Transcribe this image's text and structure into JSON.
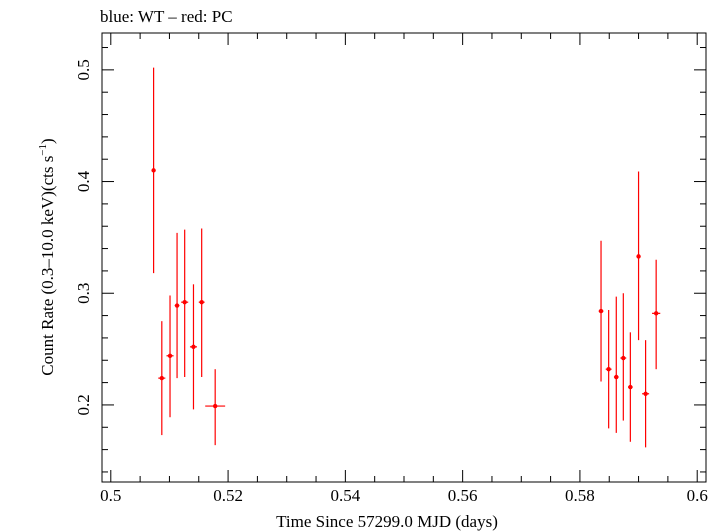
{
  "chart_data": {
    "type": "scatter",
    "title": "blue: WT – red: PC",
    "xlabel": "Time Since 57299.0 MJD (days)",
    "ylabel_main": "Count Rate (0.3–10.0 keV)(cts s",
    "ylabel_sup": "−1",
    "ylabel_close": ")",
    "xlim": [
      0.4985,
      0.6015
    ],
    "ylim": [
      0.131,
      0.533
    ],
    "x_ticks": [
      {
        "value": 0.5,
        "label": "0.5"
      },
      {
        "value": 0.52,
        "label": "0.52"
      },
      {
        "value": 0.54,
        "label": "0.54"
      },
      {
        "value": 0.56,
        "label": "0.56"
      },
      {
        "value": 0.58,
        "label": "0.58"
      },
      {
        "value": 0.6,
        "label": "0.6"
      }
    ],
    "y_ticks": [
      {
        "value": 0.2,
        "label": "0.2"
      },
      {
        "value": 0.3,
        "label": "0.3"
      },
      {
        "value": 0.4,
        "label": "0.4"
      },
      {
        "value": 0.5,
        "label": "0.5"
      }
    ],
    "grid": false,
    "series": [
      {
        "color": "#ff0000",
        "points": [
          {
            "x": 0.5073,
            "xerr": 0.0003,
            "y": 0.41,
            "ylo": 0.318,
            "yhi": 0.502
          },
          {
            "x": 0.5087,
            "xerr": 0.0006,
            "y": 0.224,
            "ylo": 0.173,
            "yhi": 0.275
          },
          {
            "x": 0.5101,
            "xerr": 0.0006,
            "y": 0.244,
            "ylo": 0.189,
            "yhi": 0.298
          },
          {
            "x": 0.5113,
            "xerr": 0.0004,
            "y": 0.289,
            "ylo": 0.224,
            "yhi": 0.354
          },
          {
            "x": 0.5126,
            "xerr": 0.0006,
            "y": 0.292,
            "ylo": 0.225,
            "yhi": 0.357
          },
          {
            "x": 0.5141,
            "xerr": 0.0006,
            "y": 0.252,
            "ylo": 0.196,
            "yhi": 0.308
          },
          {
            "x": 0.5155,
            "xerr": 0.0005,
            "y": 0.292,
            "ylo": 0.225,
            "yhi": 0.358
          },
          {
            "x": 0.5178,
            "xerr": 0.0017,
            "y": 0.199,
            "ylo": 0.164,
            "yhi": 0.232
          },
          {
            "x": 0.5836,
            "xerr": 0.0004,
            "y": 0.284,
            "ylo": 0.221,
            "yhi": 0.347
          },
          {
            "x": 0.5849,
            "xerr": 0.0005,
            "y": 0.232,
            "ylo": 0.179,
            "yhi": 0.285
          },
          {
            "x": 0.5862,
            "xerr": 0.0004,
            "y": 0.225,
            "ylo": 0.175,
            "yhi": 0.297
          },
          {
            "x": 0.5874,
            "xerr": 0.0005,
            "y": 0.242,
            "ylo": 0.186,
            "yhi": 0.3
          },
          {
            "x": 0.5886,
            "xerr": 0.0004,
            "y": 0.216,
            "ylo": 0.167,
            "yhi": 0.265
          },
          {
            "x": 0.59,
            "xerr": 0.0003,
            "y": 0.333,
            "ylo": 0.258,
            "yhi": 0.409
          },
          {
            "x": 0.5912,
            "xerr": 0.0006,
            "y": 0.21,
            "ylo": 0.162,
            "yhi": 0.258
          },
          {
            "x": 0.593,
            "xerr": 0.0007,
            "y": 0.282,
            "ylo": 0.232,
            "yhi": 0.33
          }
        ]
      }
    ]
  }
}
